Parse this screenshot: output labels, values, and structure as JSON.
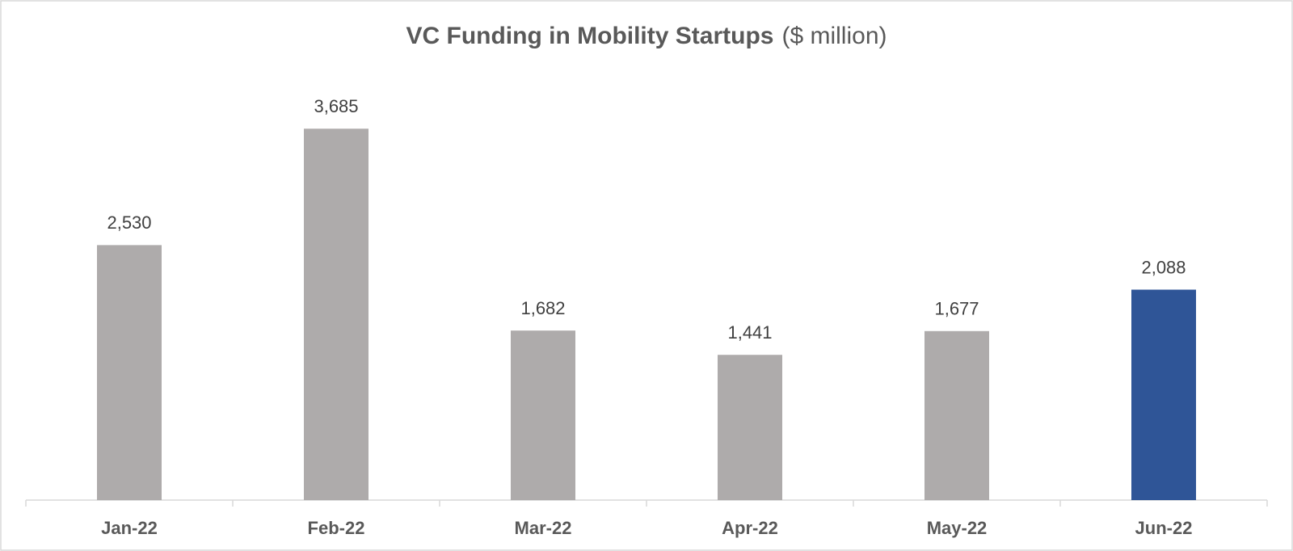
{
  "chart_data": {
    "type": "bar",
    "title": "VC Funding in Mobility Startups",
    "units": "($ million)",
    "categories": [
      "Jan-22",
      "Feb-22",
      "Mar-22",
      "Apr-22",
      "May-22",
      "Jun-22"
    ],
    "values": [
      2530,
      3685,
      1682,
      1441,
      1677,
      2088
    ],
    "value_labels": [
      "2,530",
      "3,685",
      "1,682",
      "1,441",
      "1,677",
      "2,088"
    ],
    "colors": [
      "#aeabab",
      "#aeabab",
      "#aeabab",
      "#aeabab",
      "#aeabab",
      "#2f5597"
    ],
    "ylim": [
      0,
      4000
    ]
  }
}
